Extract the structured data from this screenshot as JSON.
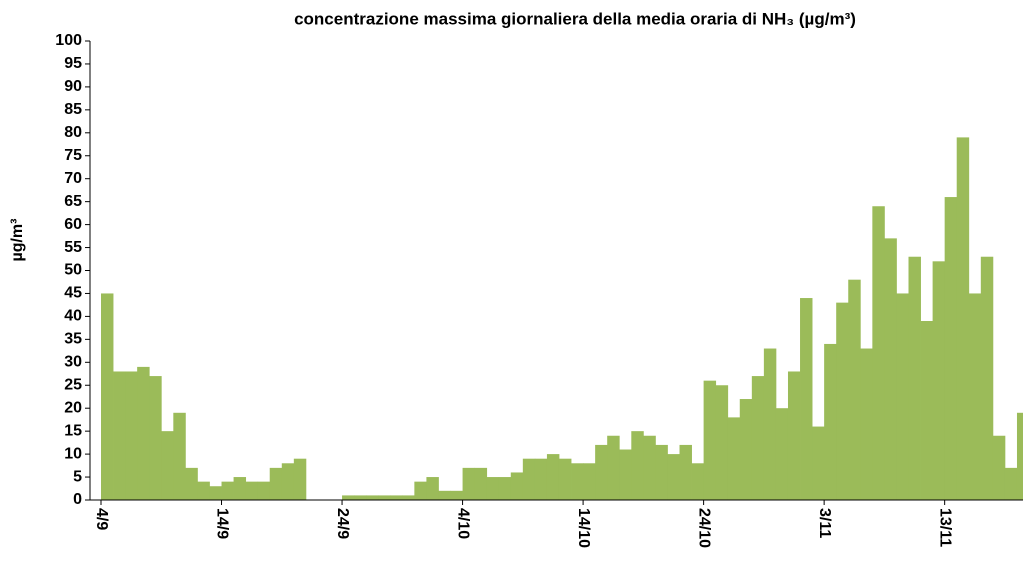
{
  "chart_data": {
    "type": "bar",
    "title": "concentrazione massima giornaliera della media oraria di NH₃ (µg/m³)",
    "ylabel": "µg/m³",
    "categories": [
      "4/9",
      null,
      null,
      null,
      null,
      null,
      null,
      null,
      null,
      null,
      "14/9",
      null,
      null,
      null,
      null,
      null,
      null,
      null,
      null,
      null,
      "24/9",
      null,
      null,
      null,
      null,
      null,
      null,
      null,
      null,
      null,
      "4/10",
      null,
      null,
      null,
      null,
      null,
      null,
      null,
      null,
      null,
      "14/10",
      null,
      null,
      null,
      null,
      null,
      null,
      null,
      null,
      null,
      "24/10",
      null,
      null,
      null,
      null,
      null,
      null,
      null,
      null,
      null,
      "3/11",
      null,
      null,
      null,
      null,
      null,
      null,
      null,
      null,
      null,
      "13/11",
      null,
      null,
      null,
      null,
      null,
      null
    ],
    "values": [
      45,
      28,
      28,
      29,
      27,
      15,
      19,
      7,
      4,
      3,
      4,
      5,
      4,
      4,
      7,
      8,
      9,
      null,
      null,
      null,
      1,
      1,
      1,
      1,
      1,
      1,
      4,
      5,
      2,
      2,
      7,
      7,
      5,
      5,
      6,
      9,
      9,
      10,
      9,
      8,
      8,
      12,
      14,
      11,
      15,
      14,
      12,
      10,
      12,
      8,
      26,
      25,
      18,
      22,
      27,
      33,
      20,
      28,
      44,
      16,
      34,
      43,
      48,
      33,
      64,
      57,
      45,
      53,
      39,
      52,
      66,
      79,
      45,
      53,
      14,
      7,
      19
    ],
    "color": "#9bbb59",
    "ylim": [
      0,
      100
    ],
    "yticks": [
      0,
      5,
      10,
      15,
      20,
      25,
      30,
      35,
      40,
      45,
      50,
      55,
      60,
      65,
      70,
      75,
      80,
      85,
      90,
      95,
      100
    ]
  }
}
